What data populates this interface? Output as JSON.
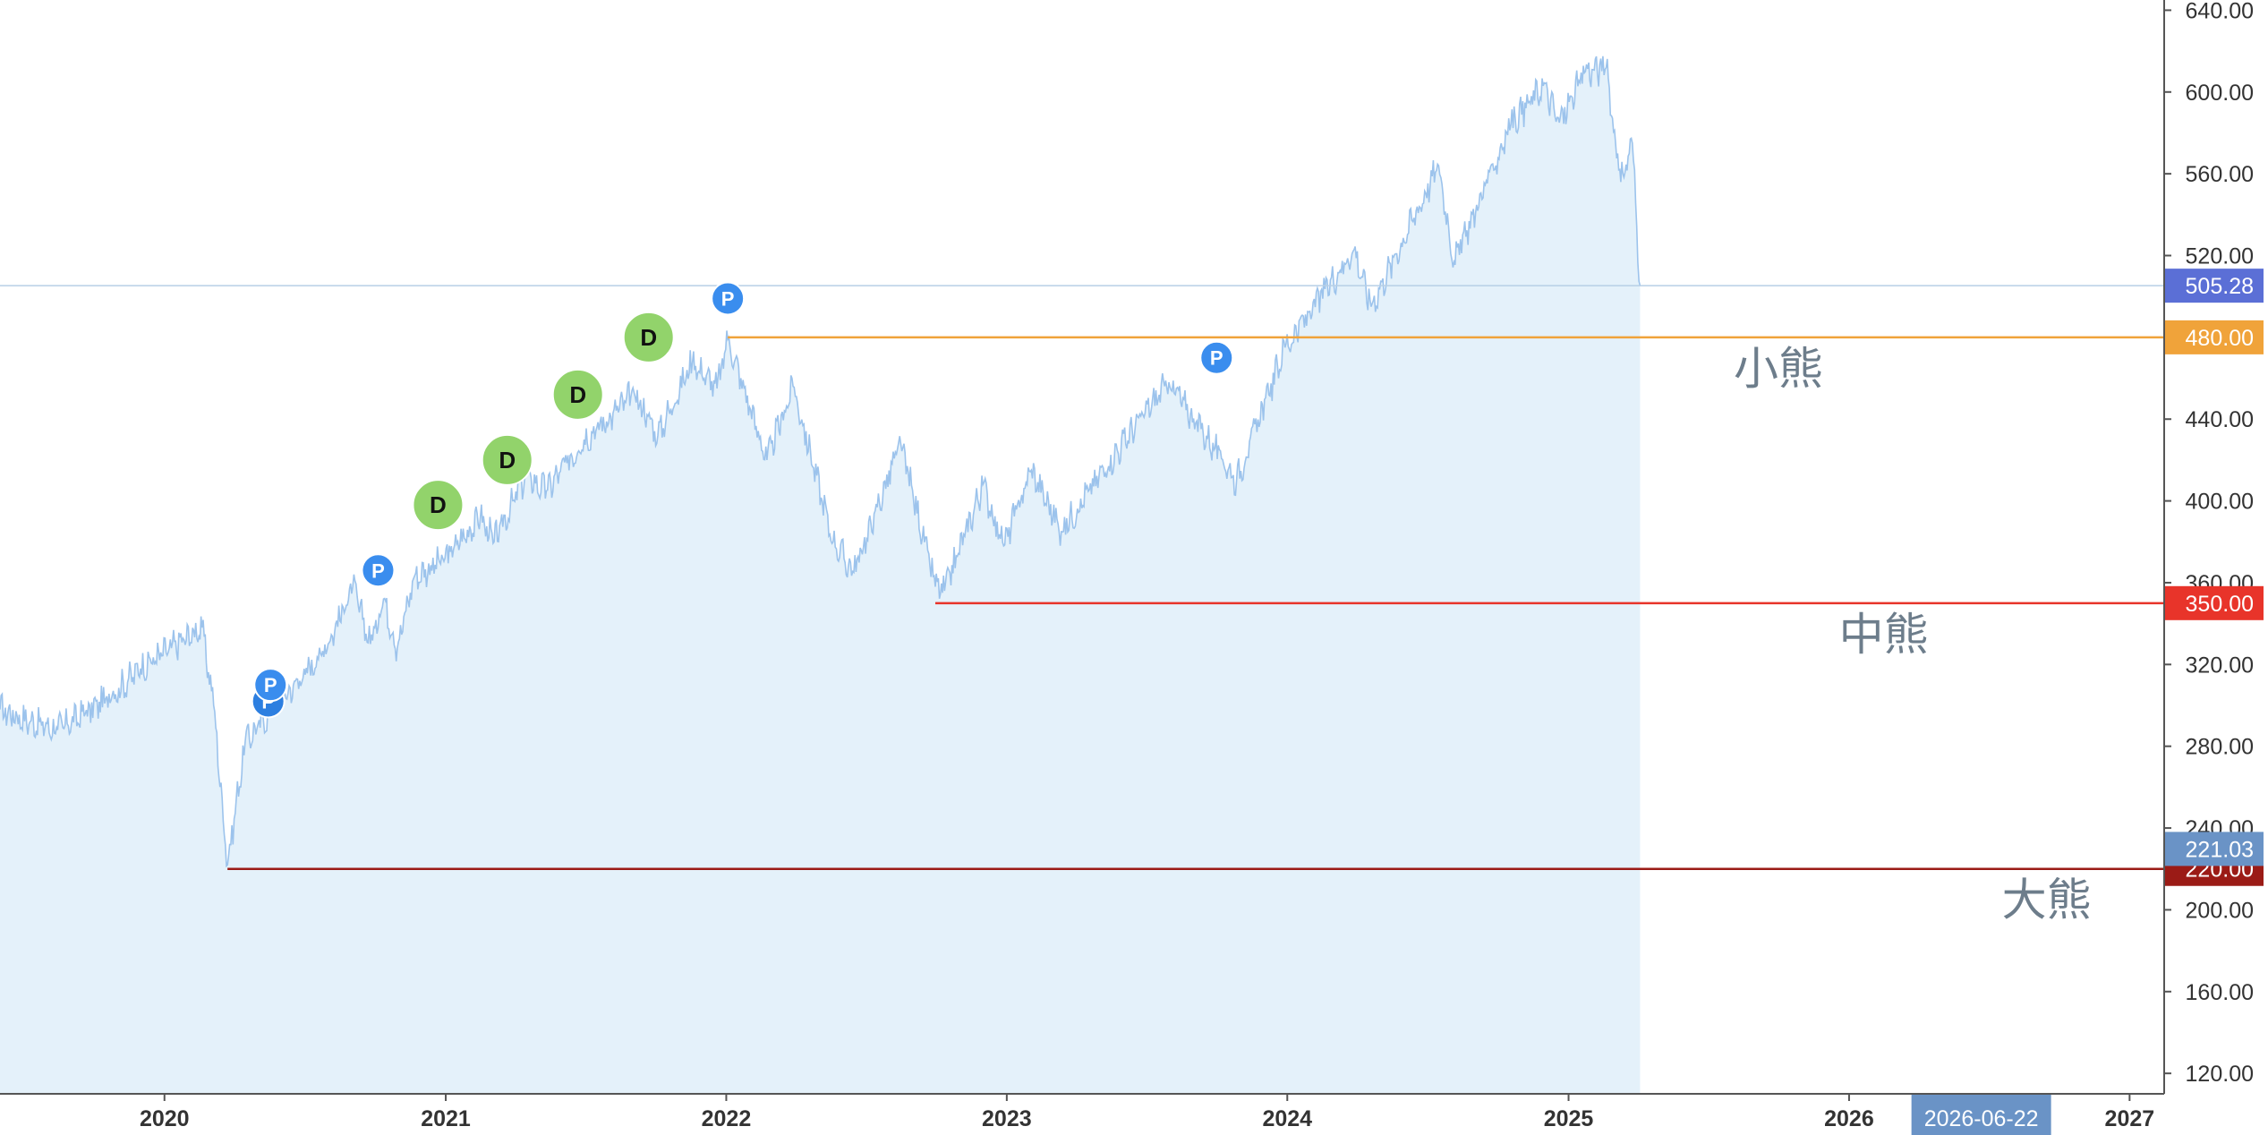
{
  "chart_data": {
    "type": "area",
    "title": "",
    "xlabel": "",
    "ylabel": "",
    "ylim": [
      110,
      645
    ],
    "xlim": [
      "2019-06-01",
      "2027-02-15"
    ],
    "grid": false,
    "legend": "none",
    "y_ticks": [
      "120.00",
      "160.00",
      "200.00",
      "240.00",
      "280.00",
      "320.00",
      "360.00",
      "400.00",
      "440.00",
      "480.00",
      "520.00",
      "560.00",
      "600.00",
      "640.00"
    ],
    "x_ticks": [
      {
        "label": "2020",
        "date": "2020-01-01"
      },
      {
        "label": "2021",
        "date": "2021-01-01"
      },
      {
        "label": "2022",
        "date": "2022-01-01"
      },
      {
        "label": "2023",
        "date": "2023-01-01"
      },
      {
        "label": "2024",
        "date": "2024-01-01"
      },
      {
        "label": "2025",
        "date": "2025-01-01"
      },
      {
        "label": "2026",
        "date": "2026-01-01"
      },
      {
        "label": "2027",
        "date": "2027-01-01"
      }
    ],
    "crosshair": {
      "date": "2026-06-22",
      "date_label": "2026-06-22",
      "price": 221.03,
      "price_label": "221.03"
    },
    "last_price": {
      "value": 505.28,
      "label": "505.28",
      "color": "#5b6fd6"
    },
    "series": [
      {
        "color": "#9cc3ec",
        "fill": "#e4f1fa",
        "points": [
          [
            "2019-06-01",
            298
          ],
          [
            "2019-07-10",
            292
          ],
          [
            "2019-08-15",
            288
          ],
          [
            "2019-09-20",
            296
          ],
          [
            "2019-10-25",
            305
          ],
          [
            "2019-12-01",
            318
          ],
          [
            "2020-01-10",
            328
          ],
          [
            "2020-02-19",
            338
          ],
          [
            "2020-03-05",
            300
          ],
          [
            "2020-03-23",
            222
          ],
          [
            "2020-04-15",
            282
          ],
          [
            "2020-05-20",
            298
          ],
          [
            "2020-06-25",
            312
          ],
          [
            "2020-08-01",
            330
          ],
          [
            "2020-09-02",
            358
          ],
          [
            "2020-09-25",
            330
          ],
          [
            "2020-10-12",
            352
          ],
          [
            "2020-10-30",
            328
          ],
          [
            "2020-11-20",
            362
          ],
          [
            "2020-12-31",
            372
          ],
          [
            "2021-02-15",
            392
          ],
          [
            "2021-03-05",
            380
          ],
          [
            "2021-04-15",
            412
          ],
          [
            "2021-05-12",
            405
          ],
          [
            "2021-06-30",
            430
          ],
          [
            "2021-08-15",
            445
          ],
          [
            "2021-09-03",
            453
          ],
          [
            "2021-10-04",
            432
          ],
          [
            "2021-11-18",
            468
          ],
          [
            "2021-12-20",
            455
          ],
          [
            "2022-01-03",
            479
          ],
          [
            "2022-02-23",
            420
          ],
          [
            "2022-03-29",
            456
          ],
          [
            "2022-05-20",
            380
          ],
          [
            "2022-06-16",
            365
          ],
          [
            "2022-08-16",
            428
          ],
          [
            "2022-09-30",
            358
          ],
          [
            "2022-10-12",
            356
          ],
          [
            "2022-12-01",
            408
          ],
          [
            "2022-12-28",
            378
          ],
          [
            "2023-02-02",
            415
          ],
          [
            "2023-03-13",
            385
          ],
          [
            "2023-05-01",
            412
          ],
          [
            "2023-06-30",
            443
          ],
          [
            "2023-07-31",
            458
          ],
          [
            "2023-10-27",
            410
          ],
          [
            "2023-12-29",
            475
          ],
          [
            "2024-03-28",
            523
          ],
          [
            "2024-04-19",
            495
          ],
          [
            "2024-07-16",
            564
          ],
          [
            "2024-08-05",
            517
          ],
          [
            "2024-10-18",
            584
          ],
          [
            "2024-11-29",
            603
          ],
          [
            "2024-12-20",
            585
          ],
          [
            "2025-01-23",
            610
          ],
          [
            "2025-02-19",
            612
          ],
          [
            "2025-03-10",
            556
          ],
          [
            "2025-03-25",
            575
          ],
          [
            "2025-04-04",
            505.28
          ]
        ]
      }
    ],
    "levels": [
      {
        "price": 480,
        "label": "480.00",
        "color": "#f0a33a",
        "from": "2022-01-03",
        "to": "2027-02-15",
        "zone_label": "小熊",
        "zone_date": "2025-10-01"
      },
      {
        "price": 350,
        "label": "350.00",
        "color": "#e8342a",
        "from": "2022-09-30",
        "to": "2027-02-15",
        "zone_label": "中熊",
        "zone_date": "2026-02-15"
      },
      {
        "price": 220,
        "label": "220.00",
        "color": "#9b1b16",
        "from": "2020-03-23",
        "to": "2027-02-15",
        "zone_label": "大熊",
        "zone_date": "2026-09-15"
      }
    ],
    "markers": [
      {
        "type": "P",
        "date": "2020-05-15",
        "value": 302,
        "color": "#2d7fe0"
      },
      {
        "type": "P",
        "date": "2020-05-18",
        "value": 310,
        "color": "#3a8dee"
      },
      {
        "type": "P",
        "date": "2020-10-05",
        "value": 366,
        "color": "#3a8dee"
      },
      {
        "type": "D",
        "date": "2020-12-22",
        "value": 398,
        "color": "#92d36b"
      },
      {
        "type": "D",
        "date": "2021-03-22",
        "value": 420,
        "color": "#92d36b"
      },
      {
        "type": "D",
        "date": "2021-06-22",
        "value": 452,
        "color": "#92d36b"
      },
      {
        "type": "D",
        "date": "2021-09-22",
        "value": 480,
        "color": "#92d36b"
      },
      {
        "type": "P",
        "date": "2022-01-03",
        "value": 499,
        "color": "#3a8dee"
      },
      {
        "type": "P",
        "date": "2023-10-01",
        "value": 470,
        "color": "#3a8dee"
      }
    ]
  }
}
